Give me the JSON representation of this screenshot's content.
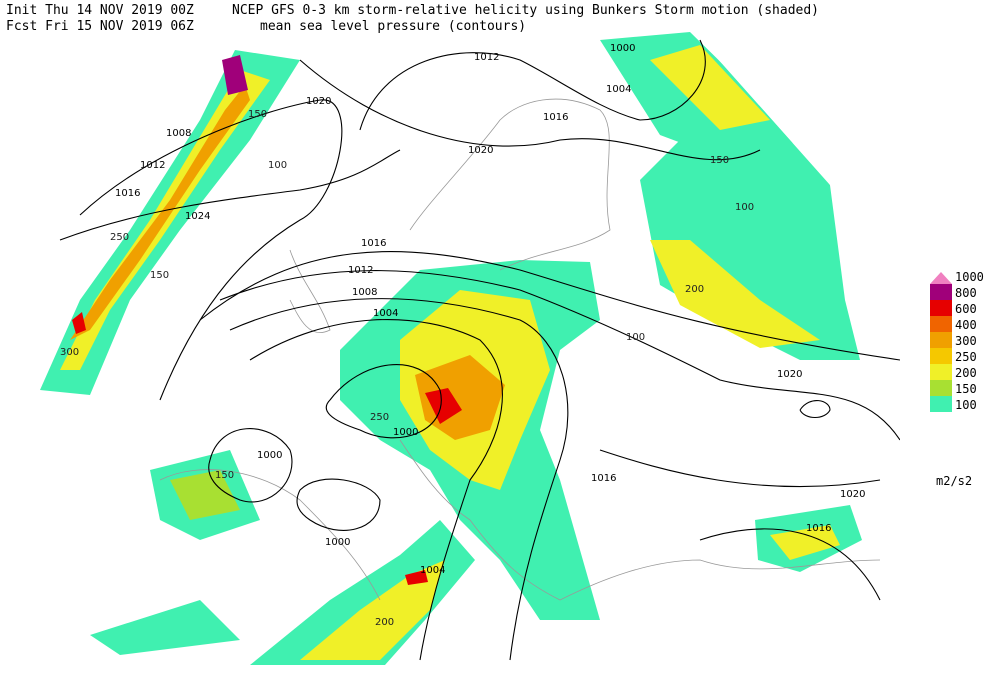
{
  "header": {
    "init": "Init  Thu 14 NOV 2019 00Z",
    "fcst": "Fcst Fri 15 NOV 2019 06Z",
    "title": "NCEP GFS 0-3 km storm-relative helicity using Bunkers Storm motion (shaded)",
    "subtitle": "mean sea level pressure (contours)"
  },
  "legend": {
    "levels": [
      {
        "label": "1000",
        "color": "#f080c0"
      },
      {
        "label": "800",
        "color": "#a0007a"
      },
      {
        "label": "600",
        "color": "#e60000"
      },
      {
        "label": "400",
        "color": "#f06400"
      },
      {
        "label": "300",
        "color": "#f0a000"
      },
      {
        "label": "250",
        "color": "#f5c800"
      },
      {
        "label": "200",
        "color": "#f0f028"
      },
      {
        "label": "150",
        "color": "#a8e032"
      },
      {
        "label": "100",
        "color": "#40f0b0"
      }
    ],
    "unit": "m2/s2"
  },
  "contours": {
    "labels": [
      "1012",
      "1016",
      "1020",
      "1000",
      "1004",
      "1020",
      "1008",
      "1012",
      "1016",
      "1024",
      "1016",
      "1012",
      "1008",
      "1004",
      "1000",
      "1000",
      "1000",
      "1004",
      "1016",
      "1020",
      "1020",
      "1016"
    ]
  },
  "shading": {
    "labels": [
      "150",
      "100",
      "250",
      "300",
      "150",
      "200",
      "100",
      "150",
      "250",
      "200",
      "100",
      "150"
    ]
  }
}
